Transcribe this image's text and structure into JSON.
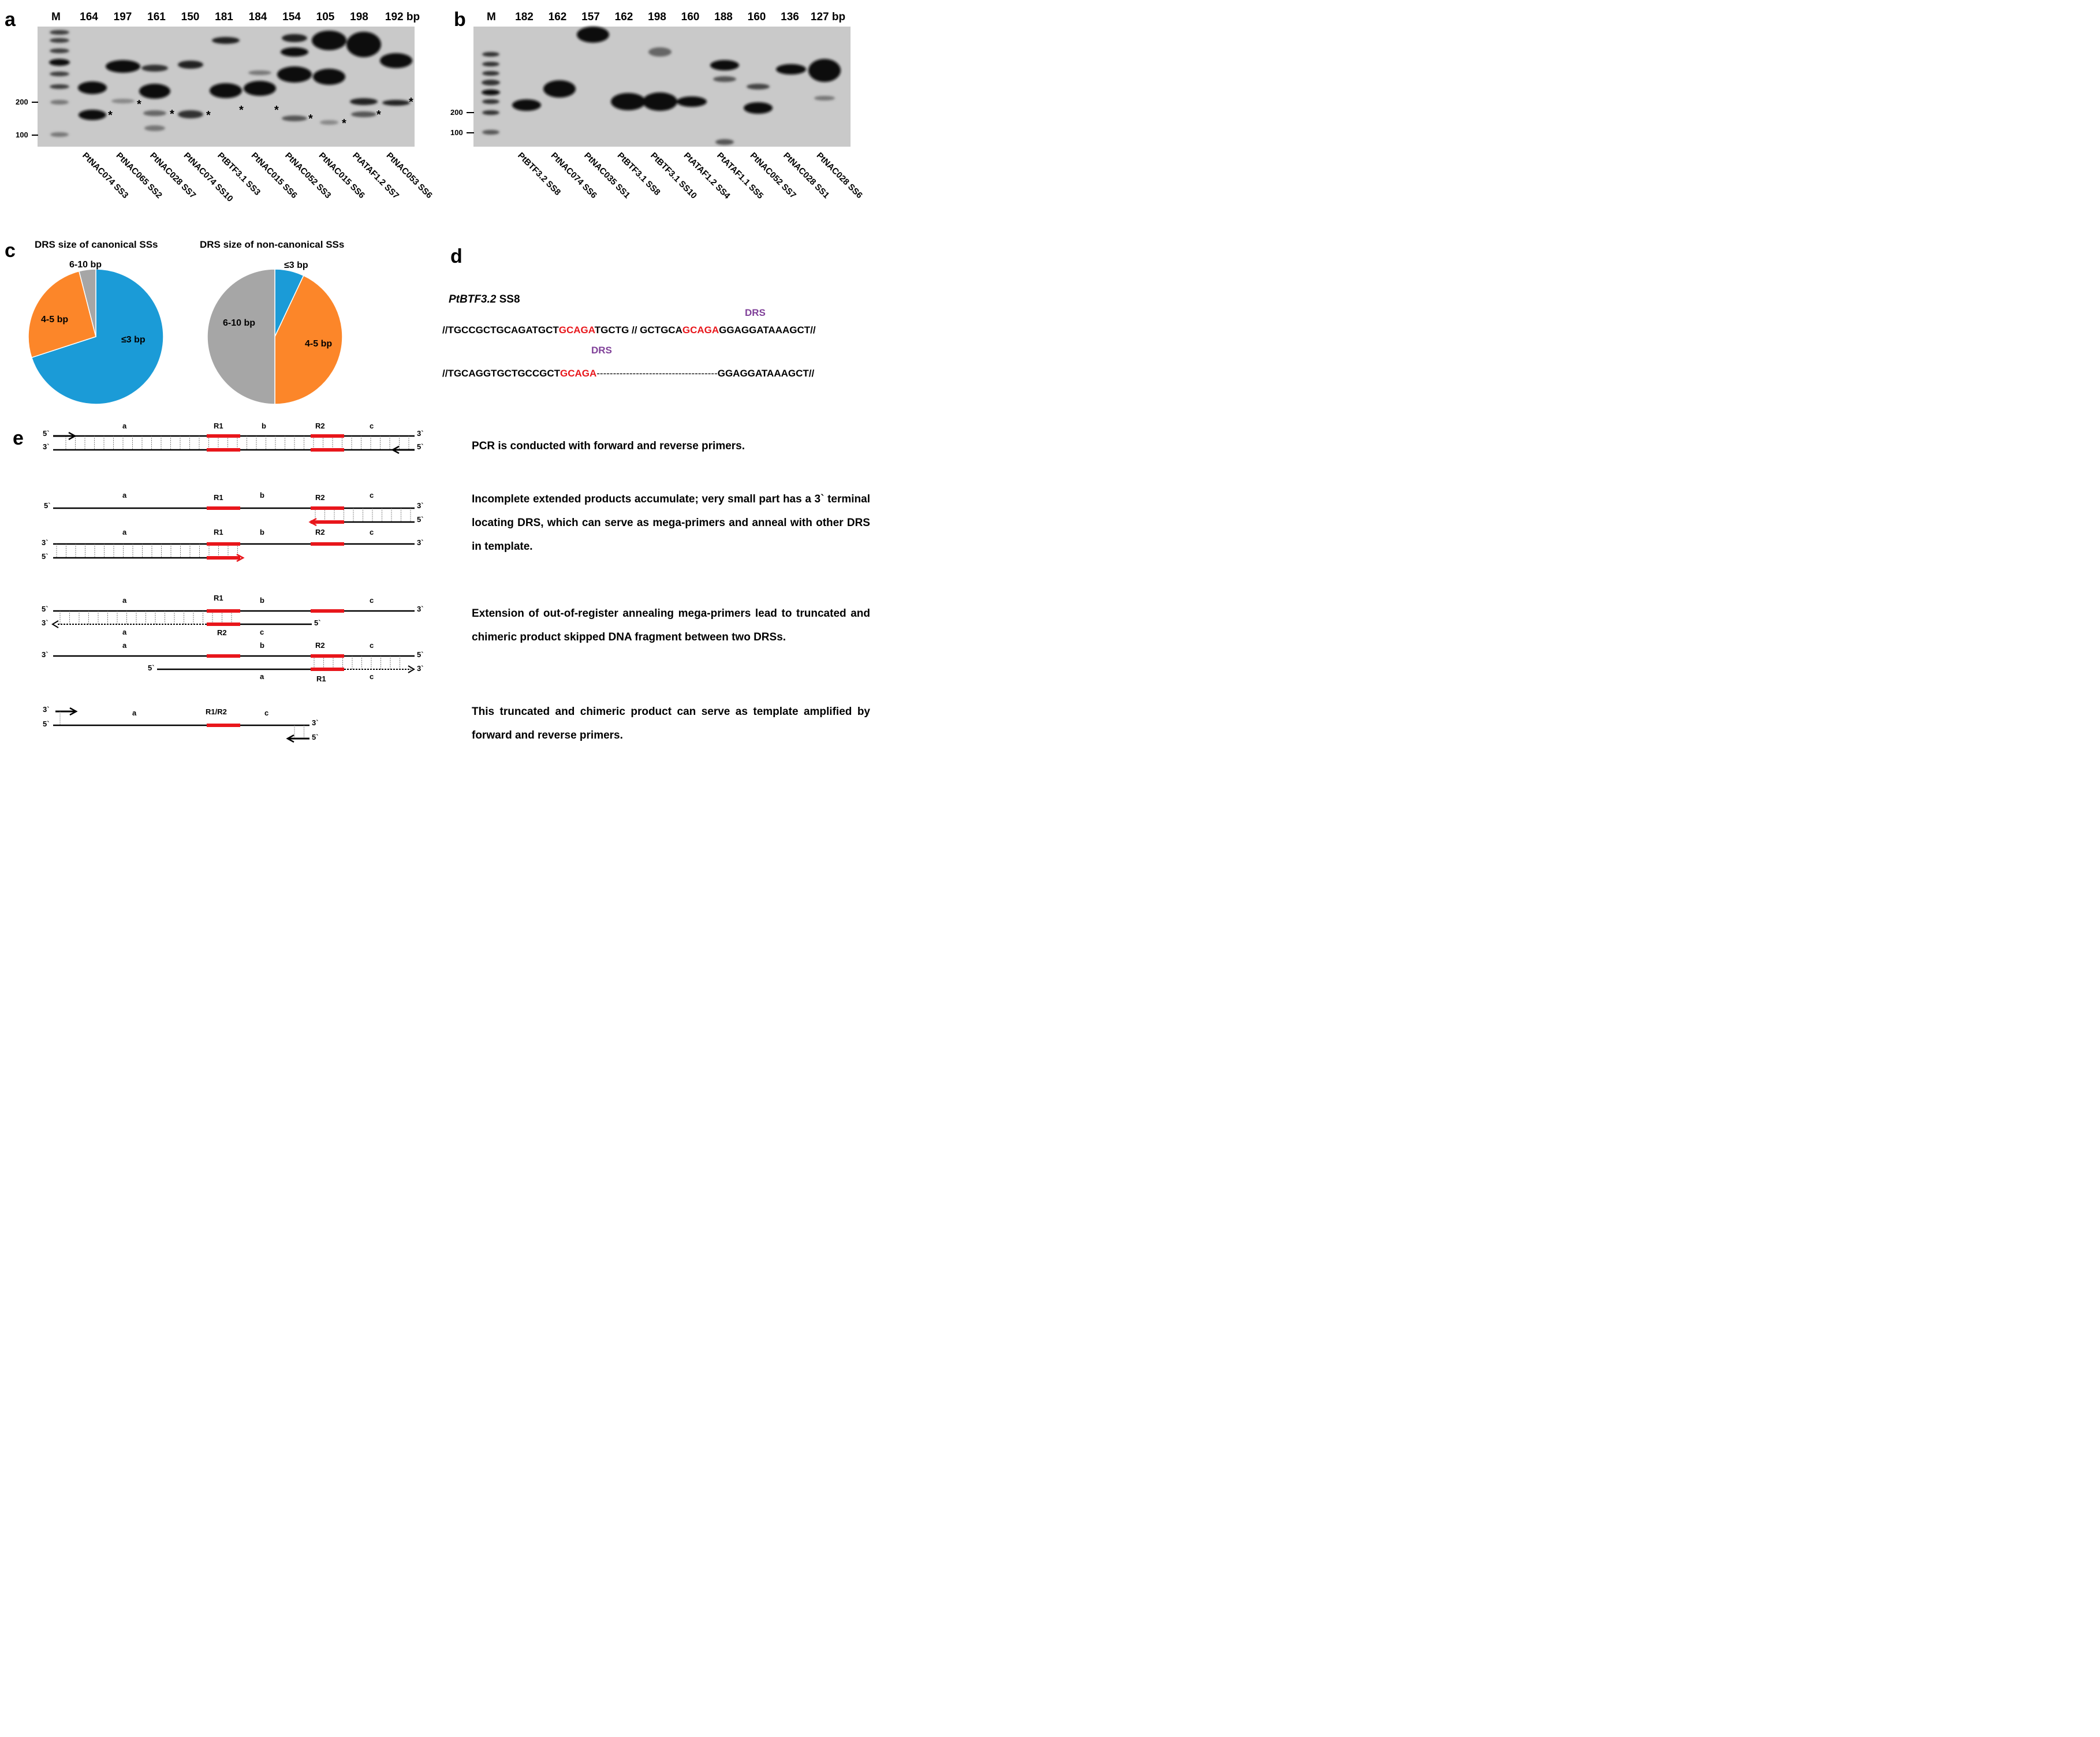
{
  "panel_a": {
    "label": "a",
    "marker": "M",
    "sizes": [
      "164",
      "197",
      "161",
      "150",
      "181",
      "184",
      "154",
      "105",
      "198",
      "192 bp"
    ],
    "ladder": [
      "200",
      "100"
    ],
    "lanes": [
      "PtNAC074 SS3",
      "PtNAC065 SS2",
      "PtNAC028 SS7",
      "PtNAC074 SS10",
      "PtBTF3.1 SS3",
      "PtNAC015 SS6",
      "PtNAC052 SS3",
      "PtNAC015 SS6",
      "PtATAF1.2 SS7",
      "PtNAC053 SS6"
    ],
    "star": "*"
  },
  "panel_b": {
    "label": "b",
    "marker": "M",
    "sizes": [
      "182",
      "162",
      "157",
      "162",
      "198",
      "160",
      "188",
      "160",
      "136",
      "127 bp"
    ],
    "ladder": [
      "200",
      "100"
    ],
    "lanes": [
      "PtBTF3.2 SS8",
      "PtNAC074 SS6",
      "PtNAC035 SS1",
      "PtBTF3.1 SS8",
      "PtBTF3.1 SS10",
      "PtATAF1.2 SS4",
      "PtATAF1.1 SS5",
      "PtNAC052 SS7",
      "PtNAC028 SS1",
      "PtNAC028 SS6"
    ]
  },
  "panel_c": {
    "label": "c",
    "chart_data": [
      {
        "type": "pie",
        "title": "DRS size of canonical SSs",
        "labels": [
          "≤3 bp",
          "4-5 bp",
          "6-10 bp"
        ],
        "values": [
          70,
          26,
          4
        ],
        "colors": [
          "#1b9bd7",
          "#fc8629",
          "#a6a6a6"
        ]
      },
      {
        "type": "pie",
        "title": "DRS size of non-canonical SSs",
        "labels": [
          "≤3 bp",
          "4-5 bp",
          "6-10 bp"
        ],
        "values": [
          7,
          43,
          50
        ],
        "colors": [
          "#1b9bd7",
          "#fc8629",
          "#a6a6a6"
        ]
      }
    ]
  },
  "panel_d": {
    "label": "d",
    "gene_italic": "PtBTF3.2",
    "gene_suffix": " SS8",
    "drs_label": "DRS",
    "seq1": {
      "p1": "//TGCCGCTGCAGATGCT",
      "r1": "GCAGA",
      "p2": "TGCTG // GCTGCA",
      "r2": "GCAGA",
      "p3": "GGAGGATAAAGCT//"
    },
    "seq2": {
      "p1": "//TGCAGGTGCTGCCGCT",
      "r1": "GCAGA",
      "p2": "-------------------------------------",
      "p3": "GGAGGATAAAGCT//"
    },
    "colors": {
      "red": "#e8161b",
      "purple": "#7f3f98"
    }
  },
  "panel_e": {
    "label": "e",
    "seg": {
      "a": "a",
      "b": "b",
      "c": "c",
      "r1": "R1",
      "r2": "R2",
      "r12": "R1/R2"
    },
    "ends": {
      "five": "5`",
      "three": "3`"
    },
    "texts": [
      "PCR is conducted with forward and reverse primers.",
      "Incomplete extended products accumulate; very small part has a 3` terminal locating DRS, which can serve as mega-primers and anneal with other DRS in template.",
      "Extension of out-of-register annealing mega-primers lead to truncated and chimeric product skipped DNA fragment between two DRSs.",
      "This truncated and chimeric product can serve as template amplified by forward and reverse primers."
    ]
  }
}
